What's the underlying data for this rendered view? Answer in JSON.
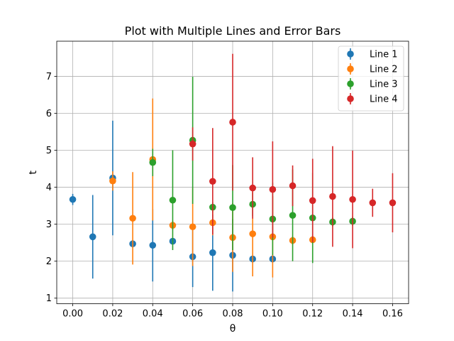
{
  "chart_data": {
    "type": "scatter",
    "title": "Plot with Multiple Lines and Error Bars",
    "xlabel": "θ",
    "ylabel": "t",
    "xlim": [
      -0.008,
      0.168
    ],
    "ylim": [
      0.85,
      7.95
    ],
    "xticks": [
      "0.00",
      "0.02",
      "0.04",
      "0.06",
      "0.08",
      "0.10",
      "0.12",
      "0.14",
      "0.16"
    ],
    "xtick_values": [
      0.0,
      0.02,
      0.04,
      0.06,
      0.08,
      0.1,
      0.12,
      0.14,
      0.16
    ],
    "yticks": [
      "1",
      "2",
      "3",
      "4",
      "5",
      "6",
      "7"
    ],
    "ytick_values": [
      1,
      2,
      3,
      4,
      5,
      6,
      7
    ],
    "grid": true,
    "legend_position": "top-right",
    "series": [
      {
        "name": "Line 1",
        "color": "#1f77b4",
        "points": [
          {
            "x": 0.0,
            "y": 3.67,
            "err": 0.15
          },
          {
            "x": 0.01,
            "y": 2.66,
            "err": 1.13
          },
          {
            "x": 0.02,
            "y": 4.25,
            "err": 1.55
          },
          {
            "x": 0.03,
            "y": 2.47,
            "err": 0.1
          },
          {
            "x": 0.04,
            "y": 2.43,
            "err": 0.98
          },
          {
            "x": 0.05,
            "y": 2.54,
            "err": 0.08
          },
          {
            "x": 0.06,
            "y": 2.12,
            "err": 0.82
          },
          {
            "x": 0.07,
            "y": 2.23,
            "err": 1.03
          },
          {
            "x": 0.08,
            "y": 2.16,
            "err": 0.98
          },
          {
            "x": 0.09,
            "y": 2.06,
            "err": 0.08
          },
          {
            "x": 0.1,
            "y": 2.06,
            "err": 0.08
          }
        ]
      },
      {
        "name": "Line 2",
        "color": "#ff7f0e",
        "points": [
          {
            "x": 0.02,
            "y": 4.17,
            "err": 0.26
          },
          {
            "x": 0.03,
            "y": 3.16,
            "err": 1.25
          },
          {
            "x": 0.04,
            "y": 4.75,
            "err": 1.65
          },
          {
            "x": 0.05,
            "y": 2.97,
            "err": 0.12
          },
          {
            "x": 0.06,
            "y": 2.93,
            "err": 1.06
          },
          {
            "x": 0.07,
            "y": 3.04,
            "err": 0.34
          },
          {
            "x": 0.08,
            "y": 2.64,
            "err": 0.93
          },
          {
            "x": 0.09,
            "y": 2.74,
            "err": 1.15
          },
          {
            "x": 0.1,
            "y": 2.66,
            "err": 1.1
          },
          {
            "x": 0.11,
            "y": 2.56,
            "err": 0.12
          },
          {
            "x": 0.12,
            "y": 2.58,
            "err": 0.12
          }
        ]
      },
      {
        "name": "Line 3",
        "color": "#2ca02c",
        "points": [
          {
            "x": 0.04,
            "y": 4.67,
            "err": 0.37
          },
          {
            "x": 0.05,
            "y": 3.65,
            "err": 1.35
          },
          {
            "x": 0.06,
            "y": 5.27,
            "err": 1.72
          },
          {
            "x": 0.07,
            "y": 3.46,
            "err": 0.14
          },
          {
            "x": 0.08,
            "y": 3.45,
            "err": 1.15
          },
          {
            "x": 0.09,
            "y": 3.54,
            "err": 0.32
          },
          {
            "x": 0.1,
            "y": 3.14,
            "err": 0.98
          },
          {
            "x": 0.11,
            "y": 3.24,
            "err": 1.24
          },
          {
            "x": 0.12,
            "y": 3.17,
            "err": 1.22
          },
          {
            "x": 0.13,
            "y": 3.06,
            "err": 0.12
          },
          {
            "x": 0.14,
            "y": 3.08,
            "err": 0.12
          }
        ]
      },
      {
        "name": "Line 4",
        "color": "#d62728",
        "points": [
          {
            "x": 0.06,
            "y": 5.17,
            "err": 0.45
          },
          {
            "x": 0.07,
            "y": 4.16,
            "err": 1.44
          },
          {
            "x": 0.08,
            "y": 5.76,
            "err": 1.85
          },
          {
            "x": 0.09,
            "y": 3.98,
            "err": 0.83
          },
          {
            "x": 0.1,
            "y": 3.94,
            "err": 1.3
          },
          {
            "x": 0.11,
            "y": 4.04,
            "err": 0.55
          },
          {
            "x": 0.12,
            "y": 3.64,
            "err": 1.13
          },
          {
            "x": 0.13,
            "y": 3.75,
            "err": 1.36
          },
          {
            "x": 0.14,
            "y": 3.67,
            "err": 1.32
          },
          {
            "x": 0.15,
            "y": 3.58,
            "err": 0.38
          },
          {
            "x": 0.16,
            "y": 3.58,
            "err": 0.8
          }
        ]
      }
    ]
  }
}
